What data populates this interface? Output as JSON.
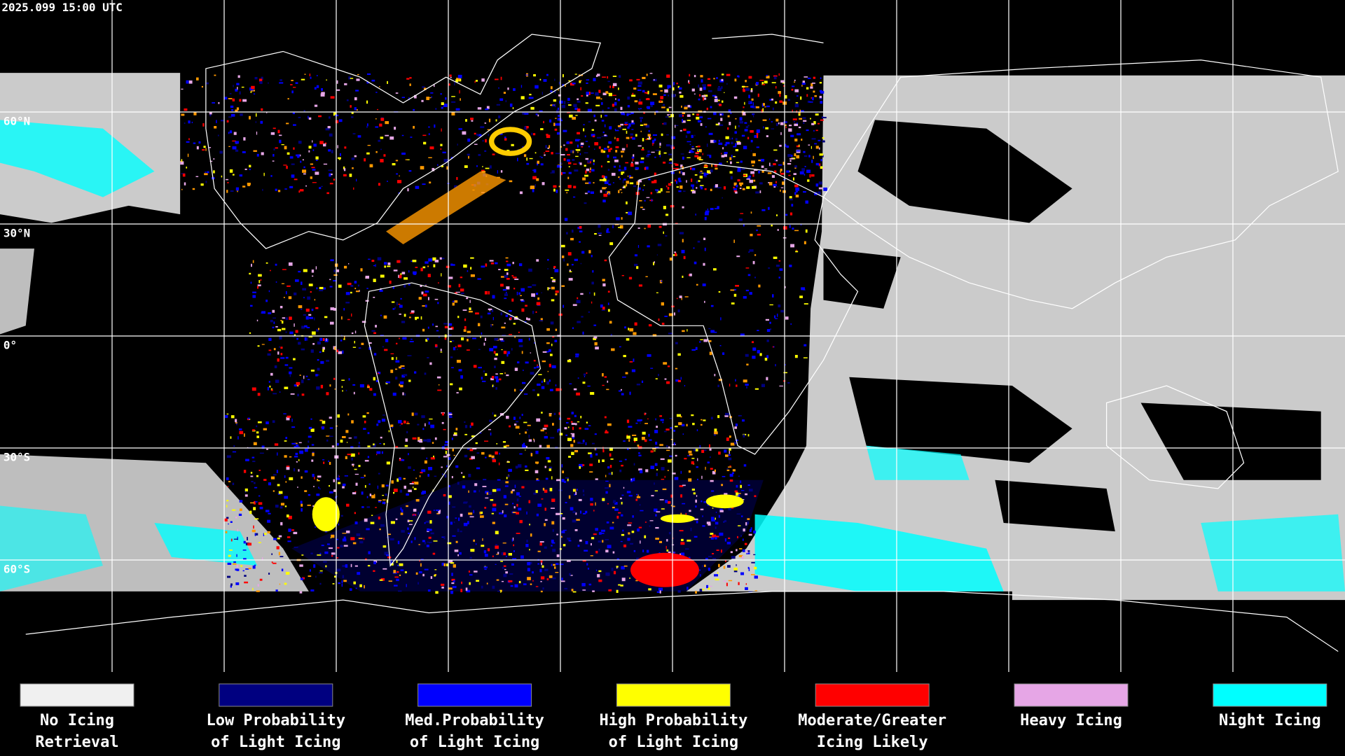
{
  "header": {
    "timestamp": "2025.099 15:00 UTC"
  },
  "map": {
    "lat_labels": [
      "60°N",
      "30°N",
      "0°",
      "30°S",
      "60°S"
    ]
  },
  "legend": [
    {
      "lines": [
        "No Icing",
        "Retrieval"
      ],
      "color": "#f0f0f0"
    },
    {
      "lines": [
        "Low Probability",
        "of Light Icing"
      ],
      "color": "#000080"
    },
    {
      "lines": [
        "Med.Probability",
        "of Light Icing"
      ],
      "color": "#0000ff"
    },
    {
      "lines": [
        "High Probability",
        "of Light Icing"
      ],
      "color": "#ffff00"
    },
    {
      "lines": [
        "Moderate/Greater",
        "Icing Likely"
      ],
      "color": "#ff0000"
    },
    {
      "lines": [
        "Heavy Icing"
      ],
      "color": "#e6a6e6"
    },
    {
      "lines": [
        "Night Icing"
      ],
      "color": "#00ffff"
    }
  ]
}
